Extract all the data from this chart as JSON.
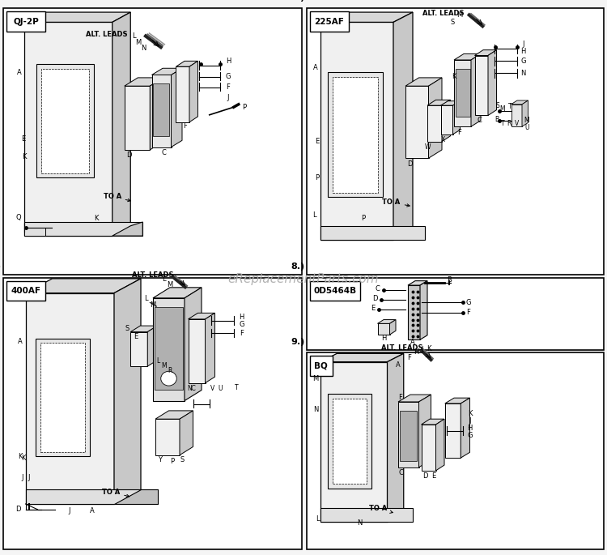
{
  "bg_color": "#f5f5f5",
  "border_color": "#000000",
  "text_color": "#000000",
  "watermark_text": "eReplacementParts.com",
  "fig_w": 7.5,
  "fig_h": 6.85,
  "dpi": 100,
  "sections": [
    {
      "id": "5",
      "label": "QJ-2P",
      "bx": 0.005,
      "by": 0.505,
      "bw": 0.492,
      "bh": 0.48
    },
    {
      "id": "6",
      "label": "225AF",
      "bx": 0.505,
      "by": 0.505,
      "bw": 0.49,
      "bh": 0.48
    },
    {
      "id": "7",
      "label": "400AF",
      "bx": 0.005,
      "by": 0.01,
      "bw": 0.492,
      "bh": 0.49
    },
    {
      "id": "8",
      "label": "0D5464B",
      "bx": 0.505,
      "by": 0.37,
      "bw": 0.49,
      "bh": 0.13
    },
    {
      "id": "9",
      "label": "BQ",
      "bx": 0.505,
      "by": 0.01,
      "bw": 0.49,
      "bh": 0.355
    }
  ]
}
